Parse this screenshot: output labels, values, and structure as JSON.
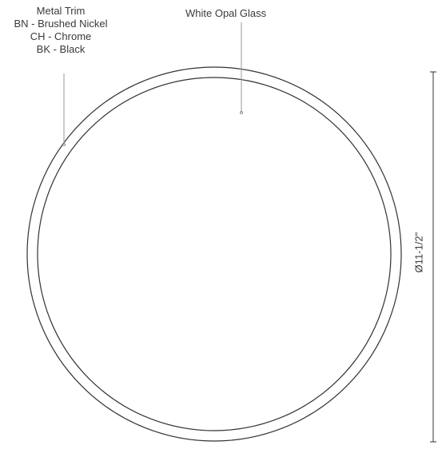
{
  "callouts": {
    "trim": {
      "title": "Metal Trim",
      "finishes": [
        "BN - Brushed Nickel",
        "CH - Chrome",
        "BK - Black"
      ]
    },
    "glass": "White Opal Glass"
  },
  "dimension": {
    "diameter": "Ø11-1/2\""
  },
  "colors": {
    "line": "#333333",
    "text": "#3a3a3a",
    "leader": "#9a9a9a"
  }
}
